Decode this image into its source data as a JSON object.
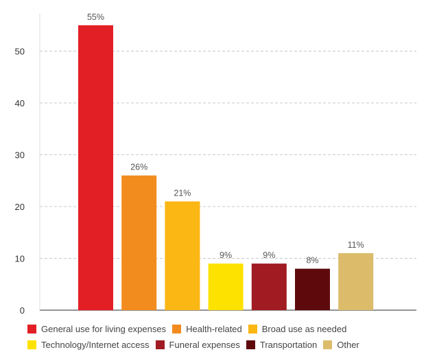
{
  "chart_data": {
    "type": "bar",
    "categories": [
      "General use for living expenses",
      "Health-related",
      "Broad use as needed",
      "Technology/Internet access",
      "Funeral expenses",
      "Transportation",
      "Other"
    ],
    "values": [
      55,
      26,
      21,
      9,
      9,
      8,
      11
    ],
    "data_labels": [
      "55%",
      "26%",
      "21%",
      "9%",
      "9%",
      "8%",
      "11%"
    ],
    "colors": [
      "#e31f26",
      "#f28c1f",
      "#fbb714",
      "#fde200",
      "#a01c22",
      "#5e0a0d",
      "#dcbc6b"
    ],
    "ylim": [
      0,
      60
    ],
    "yticks": [
      0,
      10,
      20,
      30,
      40,
      50
    ],
    "grid": true,
    "legend_placement": "bottom",
    "legend_rows": [
      [
        0,
        1,
        2
      ],
      [
        3,
        4,
        5,
        6
      ]
    ]
  }
}
